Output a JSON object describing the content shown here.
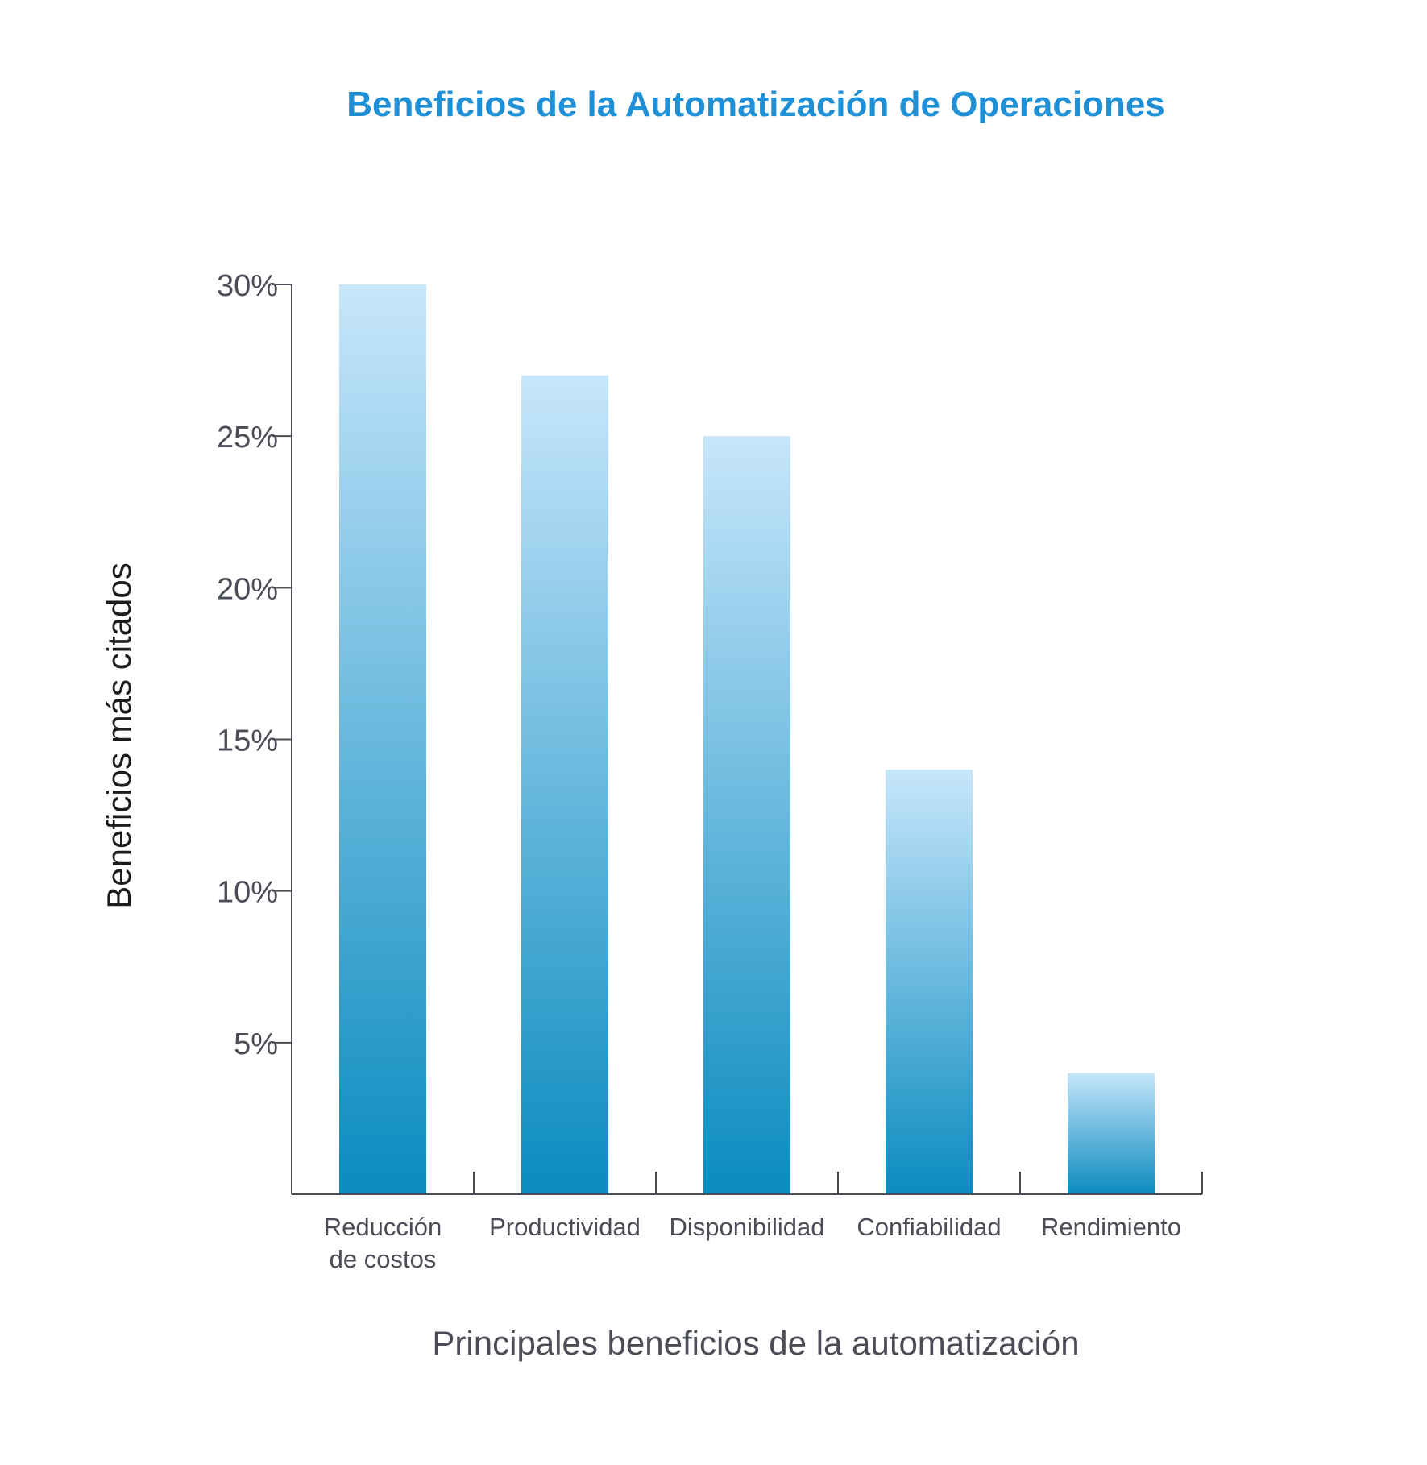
{
  "chart_data": {
    "type": "bar",
    "title": "Beneficios de la Automatización de Operaciones",
    "xlabel": "Principales beneficios de la automatización",
    "ylabel": "Beneficios más citados",
    "categories": [
      [
        "Reducción",
        "de costos"
      ],
      [
        "Productividad"
      ],
      [
        "Disponibilidad"
      ],
      [
        "Confiabilidad"
      ],
      [
        "Rendimiento"
      ]
    ],
    "values": [
      30,
      27,
      25,
      14,
      4
    ],
    "ylim": [
      0,
      30
    ],
    "yticks": [
      5,
      10,
      15,
      20,
      25,
      30
    ],
    "ytick_labels": [
      "5%",
      "10%",
      "15%",
      "20%",
      "25%",
      "30%"
    ],
    "grid": false,
    "legend": "none",
    "colors": {
      "title": "#1f8fd6",
      "bar_top": "#c7e6fb",
      "bar_bottom": "#0a8bbf",
      "axis": "#4a4d55"
    }
  }
}
